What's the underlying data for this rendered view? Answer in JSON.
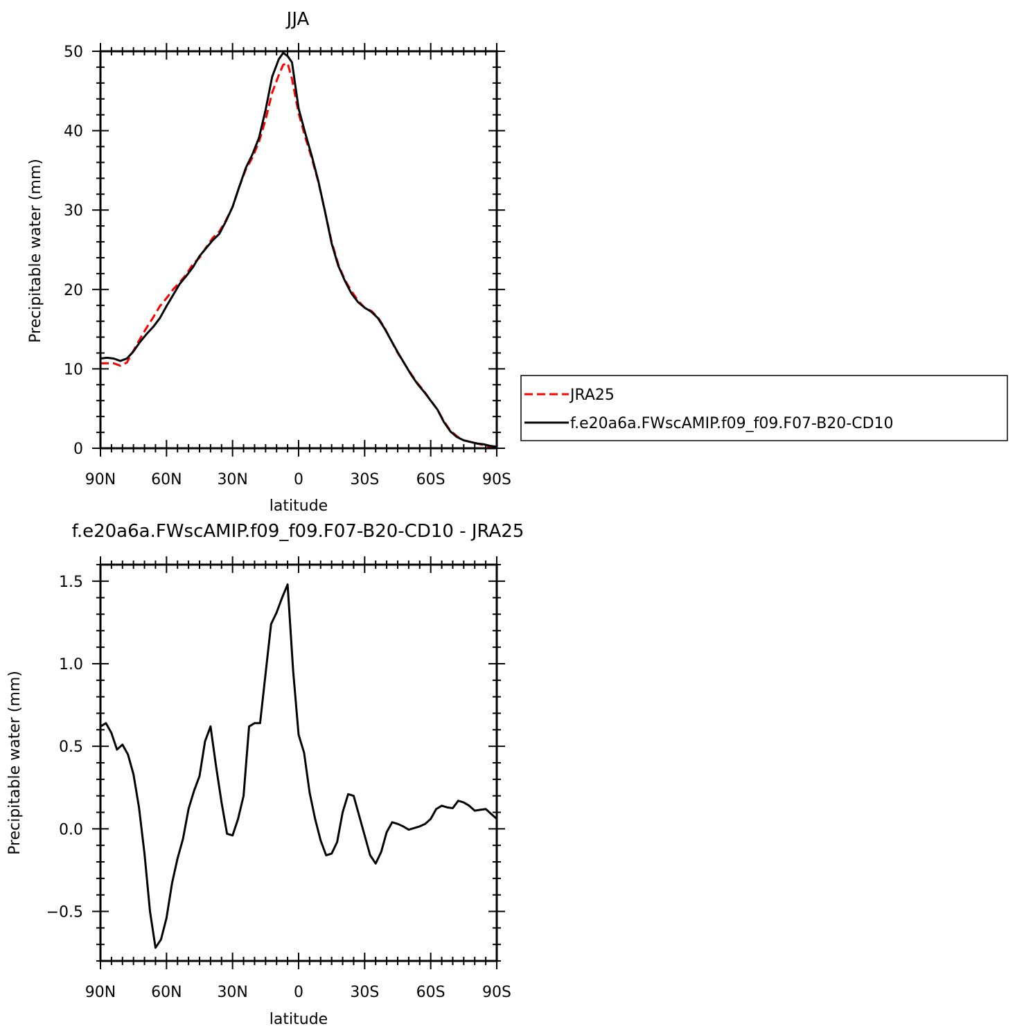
{
  "chart_data": [
    {
      "type": "line",
      "title": "JJA",
      "xlabel": "latitude",
      "ylabel": "Precipitable water (mm)",
      "xlim": [
        90,
        -90
      ],
      "ylim": [
        0,
        50
      ],
      "xticks": [
        {
          "value": 90,
          "label": "90N"
        },
        {
          "value": 60,
          "label": "60N"
        },
        {
          "value": 30,
          "label": "30N"
        },
        {
          "value": 0,
          "label": "0"
        },
        {
          "value": -30,
          "label": "30S"
        },
        {
          "value": -60,
          "label": "60S"
        },
        {
          "value": -90,
          "label": "90S"
        }
      ],
      "yticks": [
        {
          "value": 0,
          "label": "0"
        },
        {
          "value": 10,
          "label": "10"
        },
        {
          "value": 20,
          "label": "20"
        },
        {
          "value": 30,
          "label": "30"
        },
        {
          "value": 40,
          "label": "40"
        },
        {
          "value": 50,
          "label": "50"
        }
      ],
      "legend": {
        "position": "right",
        "entries": [
          {
            "name": "JRA25",
            "color": "#ff0000",
            "dash": "dashed"
          },
          {
            "name": "f.e20a6a.FWscAMIP.f09_f09.F07-B20-CD10",
            "color": "#000000",
            "dash": "solid"
          }
        ]
      },
      "series": [
        {
          "name": "JRA25",
          "color": "#ff0000",
          "dash": "dashed",
          "x": [
            90,
            87,
            84,
            81,
            78,
            75,
            72,
            69,
            66,
            63,
            60,
            57,
            54,
            51,
            48,
            45,
            42,
            39,
            36,
            33,
            30,
            27,
            24,
            21,
            18,
            15,
            12,
            9,
            7,
            5,
            3,
            0,
            -3,
            -6,
            -9,
            -12,
            -15,
            -18,
            -21,
            -24,
            -27,
            -30,
            -33,
            -36,
            -39,
            -42,
            -45,
            -48,
            -51,
            -54,
            -57,
            -60,
            -63,
            -66,
            -69,
            -72,
            -75,
            -78,
            -81,
            -84,
            -87,
            -90
          ],
          "y": [
            10.7,
            10.7,
            10.7,
            10.4,
            10.8,
            12.3,
            13.8,
            15.2,
            16.5,
            17.9,
            18.9,
            20.0,
            20.9,
            21.9,
            23.2,
            24.0,
            25.3,
            26.5,
            27.3,
            28.7,
            30.4,
            32.9,
            35.1,
            36.6,
            38.6,
            41.4,
            44.8,
            47.0,
            48.3,
            48.5,
            46.5,
            42.2,
            39.2,
            36.5,
            33.5,
            29.8,
            26.0,
            23.2,
            21.2,
            19.8,
            18.6,
            17.7,
            17.3,
            16.5,
            15.2,
            13.6,
            12.0,
            10.7,
            9.4,
            8.2,
            7.2,
            6.0,
            4.9,
            3.4,
            2.2,
            1.5,
            1.0,
            0.8,
            0.6,
            0.4,
            0.2,
            0.1
          ]
        },
        {
          "name": "f.e20a6a.FWscAMIP.f09_f09.F07-B20-CD10",
          "color": "#000000",
          "dash": "solid",
          "x": [
            90,
            87,
            84,
            81,
            78,
            75,
            72,
            69,
            66,
            63,
            60,
            57,
            54,
            51,
            48,
            45,
            42,
            39,
            36,
            33,
            30,
            27,
            24,
            21,
            18,
            15,
            12,
            9,
            7,
            5,
            3,
            0,
            -3,
            -6,
            -9,
            -12,
            -15,
            -18,
            -21,
            -24,
            -27,
            -30,
            -33,
            -36,
            -39,
            -42,
            -45,
            -48,
            -51,
            -54,
            -57,
            -60,
            -63,
            -66,
            -69,
            -72,
            -75,
            -78,
            -81,
            -84,
            -87,
            -90
          ],
          "y": [
            11.3,
            11.4,
            11.3,
            11.0,
            11.3,
            12.2,
            13.4,
            14.4,
            15.3,
            16.4,
            17.9,
            19.3,
            20.7,
            21.7,
            22.8,
            24.2,
            25.2,
            26.2,
            27.0,
            28.6,
            30.4,
            32.9,
            35.3,
            37.0,
            39.1,
            42.6,
            46.8,
            49.0,
            49.8,
            49.4,
            48.6,
            42.8,
            39.7,
            36.8,
            33.6,
            29.8,
            25.8,
            23.0,
            21.1,
            19.5,
            18.4,
            17.7,
            17.2,
            16.4,
            15.1,
            13.6,
            12.1,
            10.7,
            9.3,
            8.1,
            7.1,
            6.0,
            4.9,
            3.3,
            2.1,
            1.4,
            1.0,
            0.8,
            0.6,
            0.5,
            0.3,
            0.2
          ]
        }
      ]
    },
    {
      "type": "line",
      "title": "f.e20a6a.FWscAMIP.f09_f09.F07-B20-CD10 - JRA25",
      "xlabel": "latitude",
      "ylabel": "Precipitable water (mm)",
      "xlim": [
        90,
        -90
      ],
      "ylim": [
        -0.8,
        1.6
      ],
      "xticks": [
        {
          "value": 90,
          "label": "90N"
        },
        {
          "value": 60,
          "label": "60N"
        },
        {
          "value": 30,
          "label": "30N"
        },
        {
          "value": 0,
          "label": "0"
        },
        {
          "value": -30,
          "label": "30S"
        },
        {
          "value": -60,
          "label": "60S"
        },
        {
          "value": -90,
          "label": "90S"
        }
      ],
      "yticks": [
        {
          "value": -0.5,
          "label": "−0.5"
        },
        {
          "value": 0.0,
          "label": "0.0"
        },
        {
          "value": 0.5,
          "label": "0.5"
        },
        {
          "value": 1.0,
          "label": "1.0"
        },
        {
          "value": 1.5,
          "label": "1.5"
        }
      ],
      "series": [
        {
          "color": "#000000",
          "dash": "solid",
          "x": [
            90,
            87.5,
            85,
            82.5,
            80,
            77.5,
            75,
            72.5,
            70,
            67.5,
            65,
            62.5,
            60,
            57.5,
            55,
            52.5,
            50,
            47.5,
            45,
            42.5,
            40,
            37.5,
            35,
            32.5,
            30,
            27.5,
            25,
            22.5,
            20,
            17.5,
            15,
            12.5,
            10,
            7.5,
            5,
            2.5,
            0,
            -2.5,
            -5,
            -7.5,
            -10,
            -12.5,
            -15,
            -17.5,
            -20,
            -22.5,
            -25,
            -27.5,
            -30,
            -32.5,
            -35,
            -37.5,
            -40,
            -42.5,
            -45,
            -47.5,
            -50,
            -52.5,
            -55,
            -57.5,
            -60,
            -62.5,
            -65,
            -67.5,
            -70,
            -72.5,
            -75,
            -77.5,
            -80,
            -82.5,
            -85,
            -87.5,
            -90
          ],
          "y": [
            0.62,
            0.64,
            0.58,
            0.48,
            0.51,
            0.45,
            0.33,
            0.13,
            -0.15,
            -0.5,
            -0.72,
            -0.67,
            -0.54,
            -0.33,
            -0.18,
            -0.06,
            0.12,
            0.23,
            0.32,
            0.53,
            0.62,
            0.38,
            0.16,
            -0.03,
            -0.04,
            0.06,
            0.2,
            0.62,
            0.64,
            0.64,
            0.94,
            1.24,
            1.31,
            1.4,
            1.48,
            0.96,
            0.57,
            0.46,
            0.22,
            0.06,
            -0.07,
            -0.16,
            -0.15,
            -0.08,
            0.1,
            0.21,
            0.2,
            0.08,
            -0.04,
            -0.16,
            -0.21,
            -0.14,
            -0.02,
            0.04,
            0.03,
            0.015,
            -0.005,
            0.005,
            0.015,
            0.03,
            0.06,
            0.12,
            0.14,
            0.13,
            0.125,
            0.17,
            0.16,
            0.14,
            0.11,
            0.115,
            0.12,
            0.09,
            0.06
          ]
        }
      ]
    }
  ]
}
